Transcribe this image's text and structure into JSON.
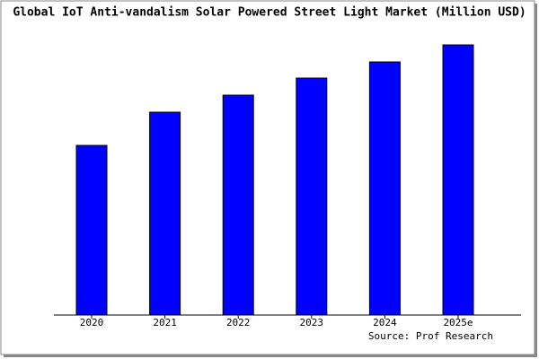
{
  "chart_data": {
    "type": "bar",
    "title": "Global IoT Anti-vandalism Solar Powered Street Light Market (Million USD)",
    "categories": [
      "2020",
      "2021",
      "2022",
      "2023",
      "2024",
      "2025e"
    ],
    "values": [
      189,
      226,
      245,
      264,
      282,
      301
    ],
    "color": "#0000ff",
    "ylim": [
      0,
      303
    ],
    "source": "Source: Prof Research"
  }
}
